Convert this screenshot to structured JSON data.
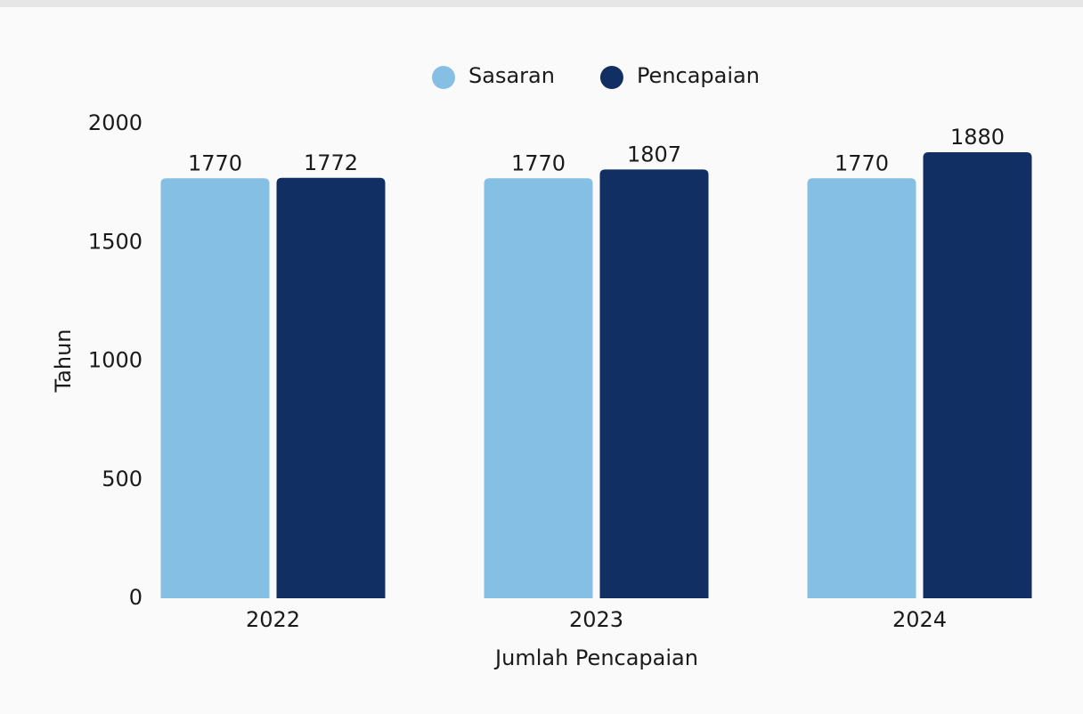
{
  "chart_data": {
    "type": "bar",
    "x_label": "Jumlah Pencapaian",
    "y_label": "Tahun",
    "categories": [
      "2022",
      "2023",
      "2024"
    ],
    "series": [
      {
        "name": "Sasaran",
        "color": "#85c0e4",
        "values": [
          1770,
          1770,
          1770
        ]
      },
      {
        "name": "Pencapaian",
        "color": "#122f63",
        "values": [
          1772,
          1807,
          1880
        ]
      }
    ],
    "ylim": [
      0,
      2000
    ],
    "yticks": [
      0,
      500,
      1000,
      1500,
      2000
    ],
    "legend": "top"
  }
}
